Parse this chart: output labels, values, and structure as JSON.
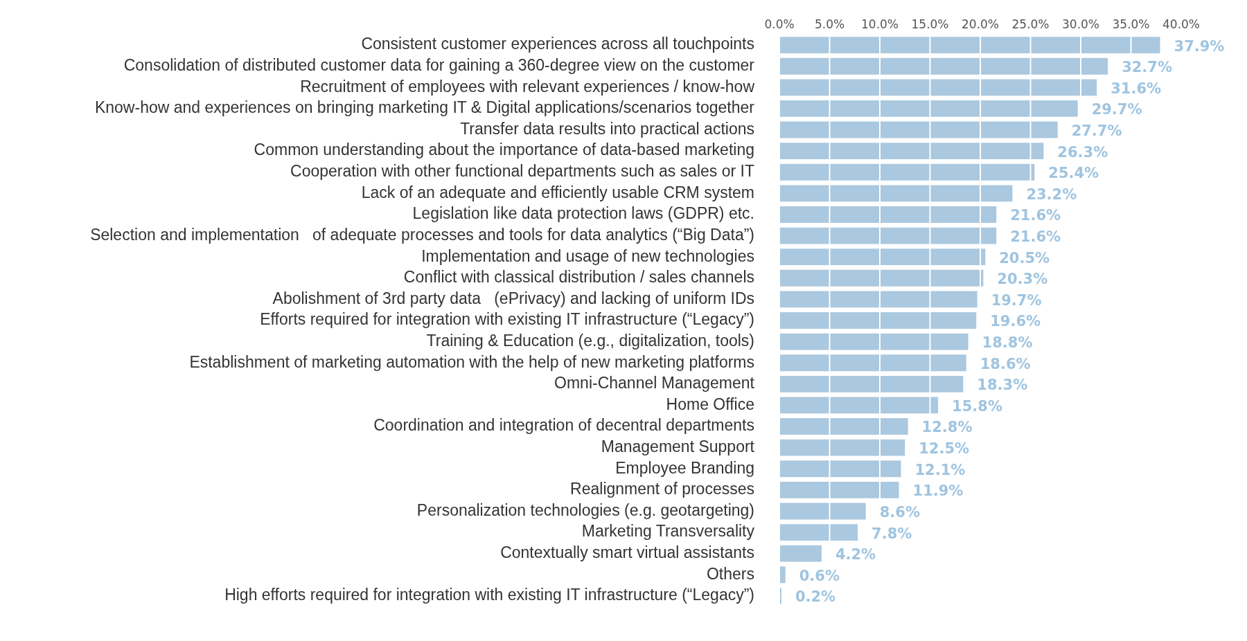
{
  "chart_data": {
    "type": "bar",
    "orientation": "horizontal",
    "categories": [
      "Consistent customer experiences across all touchpoints",
      "Consolidation of distributed customer data for gaining a 360-degree view on the customer",
      "Recruitment of employees with relevant experiences / know-how",
      "Know-how and experiences on bringing marketing IT & Digital applications/scenarios together",
      "Transfer data results into practical actions",
      "Common understanding about the importance of data-based marketing",
      "Cooperation with other functional departments such as sales or IT",
      "Lack of an adequate and efficiently usable CRM system",
      "Legislation like data protection laws (GDPR) etc.",
      "Selection and implementation   of adequate processes and tools for data analytics (“Big Data”)",
      "Implementation and usage of new technologies",
      "Conflict with classical distribution / sales channels",
      "Abolishment of 3rd party data   (ePrivacy) and lacking of uniform IDs",
      "Efforts required for integration with existing IT infrastructure (“Legacy”)",
      "Training & Education (e.g., digitalization, tools)",
      "Establishment of marketing automation with the help of new marketing platforms",
      "Omni-Channel Management",
      "Home Office",
      "Coordination and integration of decentral departments",
      "Management Support",
      "Employee Branding",
      "Realignment of processes",
      "Personalization technologies (e.g. geotargeting)",
      "Marketing Transversality",
      "Contextually smart virtual assistants",
      "Others",
      "High efforts required for integration with existing IT infrastructure (“Legacy”)"
    ],
    "values": [
      37.9,
      32.7,
      31.6,
      29.7,
      27.7,
      26.3,
      25.4,
      23.2,
      21.6,
      21.6,
      20.5,
      20.3,
      19.7,
      19.6,
      18.8,
      18.6,
      18.3,
      15.8,
      12.8,
      12.5,
      12.1,
      11.9,
      8.6,
      7.8,
      4.2,
      0.6,
      0.2
    ],
    "value_labels": [
      "37.9%",
      "32.7%",
      "31.6%",
      "29.7%",
      "27.7%",
      "26.3%",
      "25.4%",
      "23.2%",
      "21.6%",
      "21.6%",
      "20.5%",
      "20.3%",
      "19.7%",
      "19.6%",
      "18.8%",
      "18.6%",
      "18.3%",
      "15.8%",
      "12.8%",
      "12.5%",
      "12.1%",
      "11.9%",
      "8.6%",
      "7.8%",
      "4.2%",
      "0.6%",
      "0.2%"
    ],
    "color": "#aac8df",
    "xlim": [
      0,
      40
    ],
    "xticks": [
      {
        "value": 0,
        "label": "0.0%"
      },
      {
        "value": 5,
        "label": "5.0%"
      },
      {
        "value": 10,
        "label": "10.0%"
      },
      {
        "value": 15,
        "label": "15.0%"
      },
      {
        "value": 20,
        "label": "20.0%"
      },
      {
        "value": 25,
        "label": "25.0%"
      },
      {
        "value": 30,
        "label": "30.0%"
      },
      {
        "value": 35,
        "label": "35.0%"
      },
      {
        "value": 40,
        "label": "40.0%"
      }
    ],
    "grid": "x",
    "legend": false
  }
}
